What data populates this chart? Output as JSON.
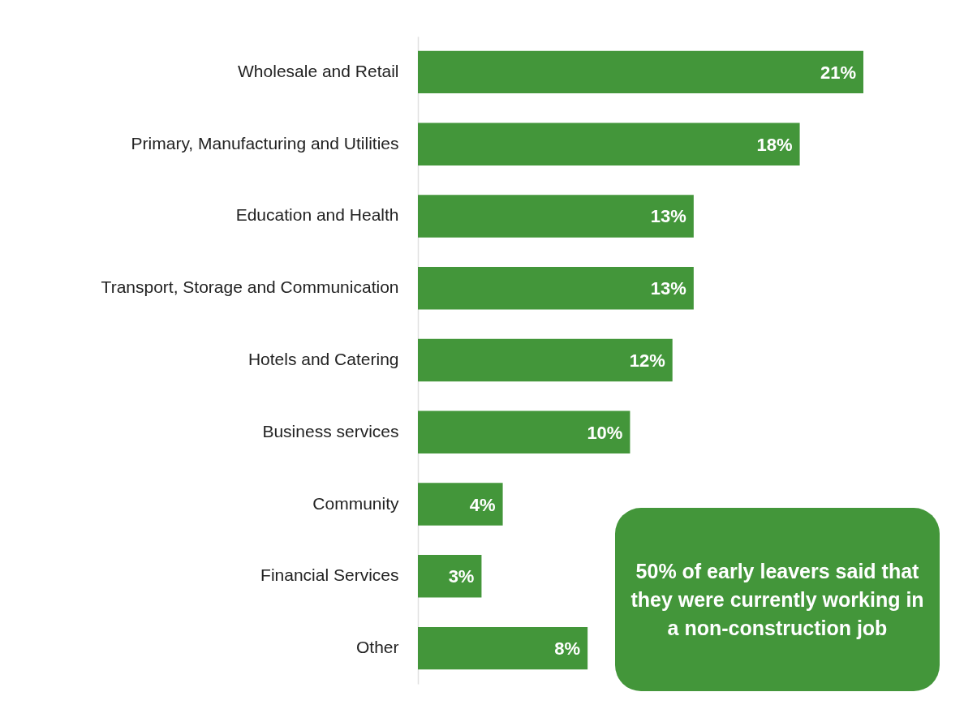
{
  "chart_data": {
    "type": "bar",
    "orientation": "horizontal",
    "categories": [
      "Wholesale and Retail",
      "Primary, Manufacturing and Utilities",
      "Education and Health",
      "Transport, Storage and Communication",
      "Hotels and Catering",
      "Business services",
      "Community",
      "Financial Services",
      "Other"
    ],
    "values": [
      21,
      18,
      13,
      13,
      12,
      10,
      4,
      3,
      8
    ],
    "color": "#43963a",
    "value_labels": [
      "21%",
      "18%",
      "13%",
      "13%",
      "12%",
      "10%",
      "4%",
      "3%",
      "8%"
    ],
    "annotations": [
      "50% of early leavers said that they were currently working in a non-construction job"
    ]
  }
}
